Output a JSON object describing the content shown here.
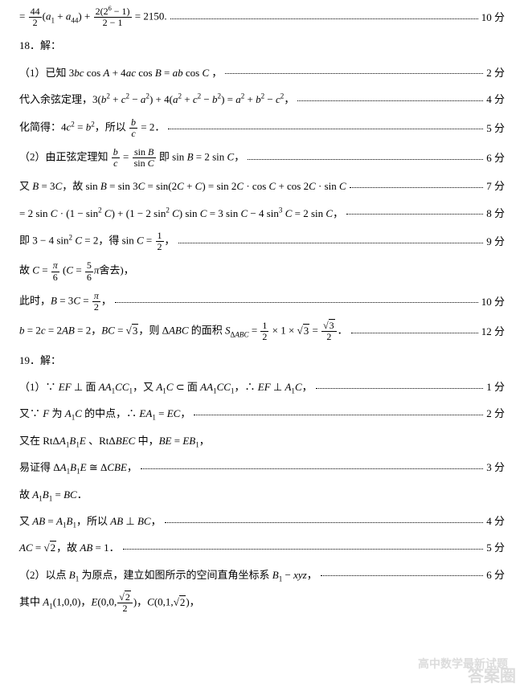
{
  "l1_formula": "= (44/2)(a₁ + a₄₄) + 2(2⁶−1)/(2−1) = 2150.",
  "l1_score": "10 分",
  "l2": "18．解：",
  "l3_pre": "（1）已知 3bc cos A + 4ac cos B = ab cos C ，",
  "l3_score": "2 分",
  "l4_pre": "代入余弦定理，3(b² + c² − a²) + 4(a² + c² − b²) = a² + b² − c²，",
  "l4_score": "4 分",
  "l5_pre": "化简得：4c² = b²，所以 b/c = 2．",
  "l5_score": "5 分",
  "l6_pre": "（2）由正弦定理知 b/c = sinB/sinC 即 sin B = 2 sin C，",
  "l6_score": "6 分",
  "l7_pre": "又 B = 3C，故 sin B = sin 3C = sin(2C + C) = sin 2C · cos C + cos 2C · sin C",
  "l7_score": "7 分",
  "l8_pre": "= 2 sin C · (1 − sin² C) + (1 − 2 sin² C) sin C = 3 sin C − 4 sin³ C = 2 sin C，",
  "l8_score": "8 分",
  "l9_pre": "即 3 − 4 sin² C = 2，得 sin C = 1/2，",
  "l9_score": "9 分",
  "l10_pre": "故 C = π/6 (C = 5π/6 舍去)，",
  "l11_pre": "此时，B = 3C = π/2，",
  "l11_score": "10 分",
  "l12_pre": "b = 2c = 2AB = 2，BC = √3，则 ΔABC 的面积 S_ΔABC = (1/2)×1×√3 = √3/2．",
  "l12_score": "12 分",
  "l13": "19．解：",
  "l14_pre": "（1）∵ EF ⊥ 面 AA₁CC₁，又 A₁C ⊂ 面 AA₁CC₁，∴ EF ⊥ A₁C，",
  "l14_score": "1 分",
  "l15_pre": "又∵ F 为 A₁C 的中点，∴ EA₁ = EC，",
  "l15_score": "2 分",
  "l16_pre": "又在 RtΔA₁B₁E 、RtΔBEC 中，BE = EB₁，",
  "l17_pre": "易证得 ΔA₁B₁E ≅ ΔCBE，",
  "l17_score": "3 分",
  "l18_pre": "故 A₁B₁ = BC．",
  "l19_pre": "又 AB = A₁B₁，所以 AB ⊥ BC，",
  "l19_score": "4 分",
  "l20_pre": "AC = √2，故 AB = 1．",
  "l20_score": "5 分",
  "l21_pre": "（2）以点 B₁ 为原点，建立如图所示的空间直角坐标系 B₁ − xyz，",
  "l21_score": "6 分",
  "l22_pre": "其中 A₁(1,0,0)，E(0,0,√2/2)，C(0,1,√2)，",
  "wm1": "答案圈",
  "wm2": "高中数学最新试题"
}
